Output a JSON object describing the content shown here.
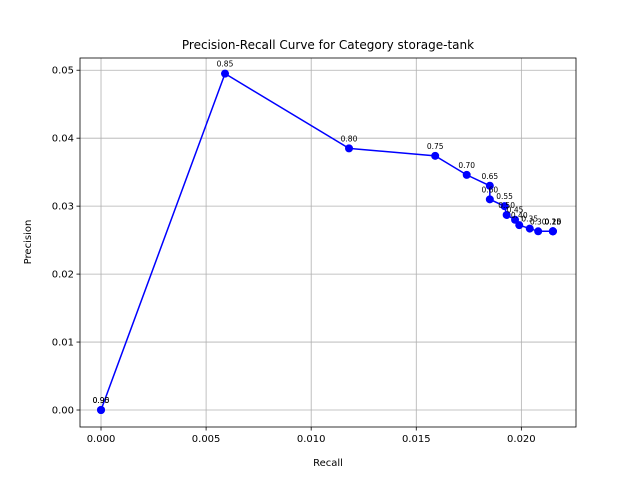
{
  "chart_data": {
    "type": "line",
    "title": "Precision-Recall Curve for Category storage-tank",
    "xlabel": "Recall",
    "ylabel": "Precision",
    "xlim": [
      -0.001,
      0.0226
    ],
    "ylim": [
      -0.0025,
      0.0518
    ],
    "xticks": [
      0.0,
      0.005,
      0.01,
      0.015,
      0.02
    ],
    "xtick_labels": [
      "0.000",
      "0.005",
      "0.010",
      "0.015",
      "0.020"
    ],
    "yticks": [
      0.0,
      0.01,
      0.02,
      0.03,
      0.04,
      0.05
    ],
    "ytick_labels": [
      "0.00",
      "0.01",
      "0.02",
      "0.03",
      "0.04",
      "0.05"
    ],
    "grid": true,
    "line_color": "#0000ff",
    "marker": "circle",
    "points": [
      {
        "x": 0.0,
        "y": 0.0,
        "label": "0.95"
      },
      {
        "x": 0.0,
        "y": 0.0,
        "label": "0.90"
      },
      {
        "x": 0.0059,
        "y": 0.0495,
        "label": "0.85"
      },
      {
        "x": 0.0118,
        "y": 0.0385,
        "label": "0.80"
      },
      {
        "x": 0.0159,
        "y": 0.0374,
        "label": "0.75"
      },
      {
        "x": 0.0174,
        "y": 0.0346,
        "label": "0.70"
      },
      {
        "x": 0.0185,
        "y": 0.033,
        "label": "0.65"
      },
      {
        "x": 0.0185,
        "y": 0.031,
        "label": "0.60"
      },
      {
        "x": 0.0192,
        "y": 0.03,
        "label": "0.55"
      },
      {
        "x": 0.0193,
        "y": 0.0287,
        "label": "0.50"
      },
      {
        "x": 0.0197,
        "y": 0.028,
        "label": "0.45"
      },
      {
        "x": 0.0199,
        "y": 0.0272,
        "label": "0.40"
      },
      {
        "x": 0.0204,
        "y": 0.0267,
        "label": "0.35"
      },
      {
        "x": 0.0208,
        "y": 0.0263,
        "label": "0.30"
      },
      {
        "x": 0.0215,
        "y": 0.0263,
        "label": "0.25"
      },
      {
        "x": 0.0215,
        "y": 0.0263,
        "label": "0.20"
      },
      {
        "x": 0.0215,
        "y": 0.0263,
        "label": "0.15"
      },
      {
        "x": 0.0215,
        "y": 0.0263,
        "label": "0.10"
      }
    ]
  }
}
